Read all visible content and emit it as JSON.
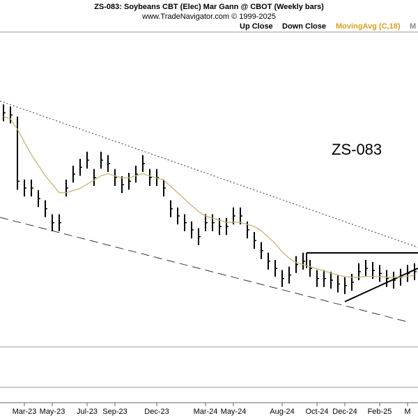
{
  "chart_data": {
    "type": "ohlc",
    "title": "ZS-083:  Soybeans CBT (Elec) Mar Gann @ CBOT  (Weekly bars)",
    "subtitle": "www.TradeNavigator.com © 1999-2025",
    "legend": [
      "Up Close",
      "Down Close",
      "MovingAvg (C,18)",
      "M"
    ],
    "annotation": "ZS-083",
    "categories": [
      null,
      null,
      null,
      "Mar-23",
      null,
      null,
      null,
      "May-23",
      null,
      null,
      null,
      null,
      "Jul-23",
      null,
      null,
      null,
      "Sep-23",
      null,
      null,
      null,
      null,
      null,
      "Dec-23",
      null,
      null,
      null,
      null,
      null,
      null,
      "Mar-24",
      null,
      null,
      null,
      "May-24",
      null,
      null,
      null,
      null,
      null,
      null,
      "Aug-24",
      null,
      null,
      null,
      null,
      "Oct-24",
      null,
      null,
      null,
      "Dec-24",
      null,
      null,
      null,
      null,
      "Feb-25",
      null,
      null,
      null,
      "M",
      null
    ],
    "ylim": [
      800,
      1550
    ],
    "series": [
      {
        "name": "price",
        "color": "#000000",
        "high": [
          1369,
          1364,
          1340,
          1191,
          1191,
          1166,
          1142,
          1109,
          1109,
          1191,
          1224,
          1240,
          1257,
          1216,
          1257,
          1249,
          1216,
          1199,
          1207,
          1224,
          1249,
          1216,
          1216,
          1191,
          1142,
          1125,
          1109,
          1092,
          1076,
          1109,
          1109,
          1100,
          1100,
          1125,
          1125,
          1092,
          1067,
          1043,
          1018,
          1001,
          977,
          985,
          1010,
          1018,
          1001,
          977,
          977,
          973,
          964,
          960,
          968,
          993,
          1001,
          996,
          989,
          977,
          973,
          980,
          989,
          993
        ],
        "low": [
          1329,
          1324,
          1167,
          1151,
          1151,
          1126,
          1102,
          1069,
          1069,
          1151,
          1184,
          1200,
          1217,
          1176,
          1217,
          1209,
          1176,
          1159,
          1167,
          1184,
          1209,
          1176,
          1176,
          1151,
          1102,
          1085,
          1069,
          1052,
          1036,
          1069,
          1069,
          1060,
          1060,
          1085,
          1085,
          1052,
          1027,
          1003,
          978,
          961,
          937,
          945,
          970,
          978,
          961,
          937,
          937,
          933,
          924,
          920,
          928,
          953,
          961,
          956,
          949,
          937,
          933,
          940,
          949,
          953
        ],
        "close": [
          1349,
          1344,
          1187,
          1171,
          1171,
          1146,
          1122,
          1089,
          1089,
          1171,
          1204,
          1220,
          1237,
          1196,
          1237,
          1229,
          1196,
          1179,
          1187,
          1204,
          1229,
          1196,
          1196,
          1171,
          1122,
          1105,
          1089,
          1072,
          1056,
          1089,
          1089,
          1080,
          1080,
          1105,
          1105,
          1072,
          1047,
          1023,
          998,
          981,
          957,
          965,
          990,
          998,
          981,
          957,
          957,
          953,
          944,
          940,
          948,
          973,
          981,
          976,
          969,
          957,
          953,
          960,
          969,
          973
        ]
      },
      {
        "name": "MovingAvg (C,18)",
        "color": "#c8b27a",
        "values": [
          1340,
          1335,
          1310,
          1280,
          1250,
          1225,
          1200,
          1180,
          1160,
          1160,
          1165,
          1170,
          1180,
          1190,
          1200,
          1205,
          1200,
          1195,
          1195,
          1200,
          1205,
          1200,
          1195,
          1190,
          1175,
          1160,
          1145,
          1130,
          1115,
          1105,
          1100,
          1095,
          1090,
          1090,
          1090,
          1085,
          1080,
          1070,
          1055,
          1040,
          1020,
          1005,
          995,
          990,
          985,
          980,
          975,
          970,
          965,
          962,
          960,
          960,
          962,
          962,
          962,
          960,
          960,
          960,
          962,
          965
        ]
      }
    ]
  }
}
